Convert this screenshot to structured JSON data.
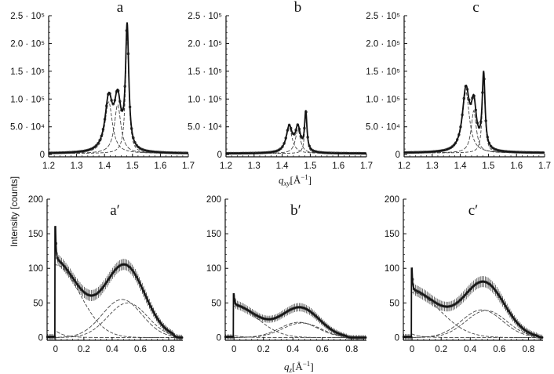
{
  "figure": {
    "ylabel": "Intensity [counts]",
    "xlabel_top": {
      "base": "q",
      "sub": "xy",
      "unit": "[Å",
      "exp": "−1",
      "close": "]"
    },
    "xlabel_bottom": {
      "base": "q",
      "sub": "z",
      "unit": "[Å",
      "exp": "−1",
      "close": "]"
    },
    "colors": {
      "fit": "#111111",
      "component": "#444444",
      "marker": "#333333",
      "axis": "#111111"
    }
  },
  "chart_data": [
    {
      "panel": "a",
      "type": "line",
      "title": "a",
      "xlim": [
        1.2,
        1.7
      ],
      "ylim": [
        -4000,
        250000
      ],
      "xticks": [
        1.2,
        1.3,
        1.4,
        1.5,
        1.6,
        1.7
      ],
      "xticklabels": [
        "1.2",
        "1.3",
        "1.4",
        "1.5",
        "1.6",
        "1.7"
      ],
      "yticks": [
        0,
        50000,
        100000,
        150000,
        200000,
        250000
      ],
      "yticklabels": [
        "0",
        "5.0 · 10⁴",
        "1.0 · 10⁵",
        "1.5 · 10⁵",
        "2.0 · 10⁵",
        "2.5 · 10⁵"
      ],
      "components": [
        {
          "shape": "lorentzian",
          "center": 1.415,
          "height": 93000,
          "hwhm": 0.016
        },
        {
          "shape": "lorentzian",
          "center": 1.447,
          "height": 88000,
          "hwhm": 0.014
        },
        {
          "shape": "lorentzian",
          "center": 1.481,
          "height": 218000,
          "hwhm": 0.007
        }
      ],
      "baseline": 2000,
      "data_step": 0.006,
      "error": 0
    },
    {
      "panel": "b",
      "type": "line",
      "title": "b",
      "xlim": [
        1.2,
        1.7
      ],
      "ylim": [
        -4000,
        250000
      ],
      "xticks": [
        1.2,
        1.3,
        1.4,
        1.5,
        1.6,
        1.7
      ],
      "xticklabels": [
        "1.2",
        "1.3",
        "1.4",
        "1.5",
        "1.6",
        "1.7"
      ],
      "yticks": [
        0,
        50000,
        100000,
        150000,
        200000,
        250000
      ],
      "yticklabels": [
        "0",
        "5.0 · 10⁴",
        "1.0 · 10⁵",
        "1.5 · 10⁵",
        "2.0 · 10⁵",
        "2.5 · 10⁵"
      ],
      "components": [
        {
          "shape": "lorentzian",
          "center": 1.425,
          "height": 46000,
          "hwhm": 0.013
        },
        {
          "shape": "lorentzian",
          "center": 1.456,
          "height": 43000,
          "hwhm": 0.011
        },
        {
          "shape": "lorentzian",
          "center": 1.484,
          "height": 70000,
          "hwhm": 0.005
        }
      ],
      "baseline": 2000,
      "data_step": 0.006,
      "error": 0
    },
    {
      "panel": "c",
      "type": "line",
      "title": "c",
      "xlim": [
        1.2,
        1.7
      ],
      "ylim": [
        -4000,
        250000
      ],
      "xticks": [
        1.2,
        1.3,
        1.4,
        1.5,
        1.6,
        1.7
      ],
      "xticklabels": [
        "1.2",
        "1.3",
        "1.4",
        "1.5",
        "1.6",
        "1.7"
      ],
      "yticks": [
        0,
        50000,
        100000,
        150000,
        200000,
        250000
      ],
      "yticklabels": [
        "0",
        "5.0 · 10⁴",
        "1.0 · 10⁵",
        "1.5 · 10⁵",
        "2.0 · 10⁵",
        "2.5 · 10⁵"
      ],
      "components": [
        {
          "shape": "lorentzian",
          "center": 1.42,
          "height": 110000,
          "hwhm": 0.015
        },
        {
          "shape": "lorentzian",
          "center": 1.448,
          "height": 76000,
          "hwhm": 0.011
        },
        {
          "shape": "lorentzian",
          "center": 1.483,
          "height": 135000,
          "hwhm": 0.006
        }
      ],
      "baseline": 3000,
      "data_step": 0.006,
      "error": 0
    },
    {
      "panel": "a′",
      "type": "line",
      "title": "a′",
      "xlim": [
        -0.06,
        0.9
      ],
      "ylim": [
        -4,
        200
      ],
      "xticks": [
        0,
        0.2,
        0.4,
        0.6,
        0.8
      ],
      "xticklabels": [
        "0",
        "0.2",
        "0.4",
        "0.6",
        "0.8"
      ],
      "yticks": [
        0,
        50,
        100,
        150,
        200
      ],
      "yticklabels": [
        "0",
        "50",
        "100",
        "150",
        "200"
      ],
      "components": [
        {
          "shape": "gaussian",
          "center": 0,
          "height": 105,
          "sigma": 0.17
        },
        {
          "shape": "gaussian",
          "center": 0.47,
          "height": 55,
          "sigma": 0.14
        },
        {
          "shape": "gaussian",
          "center": 0.51,
          "height": 50,
          "sigma": 0.14
        },
        {
          "shape": "exponential",
          "height": 10,
          "decay": 0.06
        }
      ],
      "spike": {
        "center": 0,
        "height": 45
      },
      "cutoff": 0.83,
      "data_step": 0.01,
      "error": 8
    },
    {
      "panel": "b′",
      "type": "line",
      "title": "b′",
      "xlim": [
        -0.06,
        0.9
      ],
      "ylim": [
        -4,
        200
      ],
      "xticks": [
        0,
        0.2,
        0.4,
        0.6,
        0.8
      ],
      "xticklabels": [
        "0",
        "0.2",
        "0.4",
        "0.6",
        "0.8"
      ],
      "yticks": [
        0,
        50,
        100,
        150,
        200
      ],
      "yticklabels": [
        "0",
        "50",
        "100",
        "150",
        "200"
      ],
      "components": [
        {
          "shape": "gaussian",
          "center": 0,
          "height": 45,
          "sigma": 0.16
        },
        {
          "shape": "gaussian",
          "center": 0.44,
          "height": 22,
          "sigma": 0.13
        },
        {
          "shape": "gaussian",
          "center": 0.46,
          "height": 21,
          "sigma": 0.13
        },
        {
          "shape": "exponential",
          "height": 3,
          "decay": 0.06
        }
      ],
      "spike": {
        "center": 0,
        "height": 15
      },
      "cutoff": 0.76,
      "data_step": 0.01,
      "error": 7
    },
    {
      "panel": "c′",
      "type": "line",
      "title": "c′",
      "xlim": [
        -0.06,
        0.9
      ],
      "ylim": [
        -4,
        200
      ],
      "xticks": [
        0,
        0.2,
        0.4,
        0.6,
        0.8
      ],
      "xticklabels": [
        "0",
        "0.2",
        "0.4",
        "0.6",
        "0.8"
      ],
      "yticks": [
        0,
        50,
        100,
        150,
        200
      ],
      "yticklabels": [
        "0",
        "50",
        "100",
        "150",
        "200"
      ],
      "components": [
        {
          "shape": "gaussian",
          "center": 0,
          "height": 65,
          "sigma": 0.19
        },
        {
          "shape": "gaussian",
          "center": 0.48,
          "height": 40,
          "sigma": 0.14
        },
        {
          "shape": "gaussian",
          "center": 0.51,
          "height": 39,
          "sigma": 0.14
        },
        {
          "shape": "exponential",
          "height": 5,
          "decay": 0.06
        }
      ],
      "spike": {
        "center": 0,
        "height": 30
      },
      "cutoff": 0.86,
      "data_step": 0.01,
      "error": 8
    }
  ]
}
